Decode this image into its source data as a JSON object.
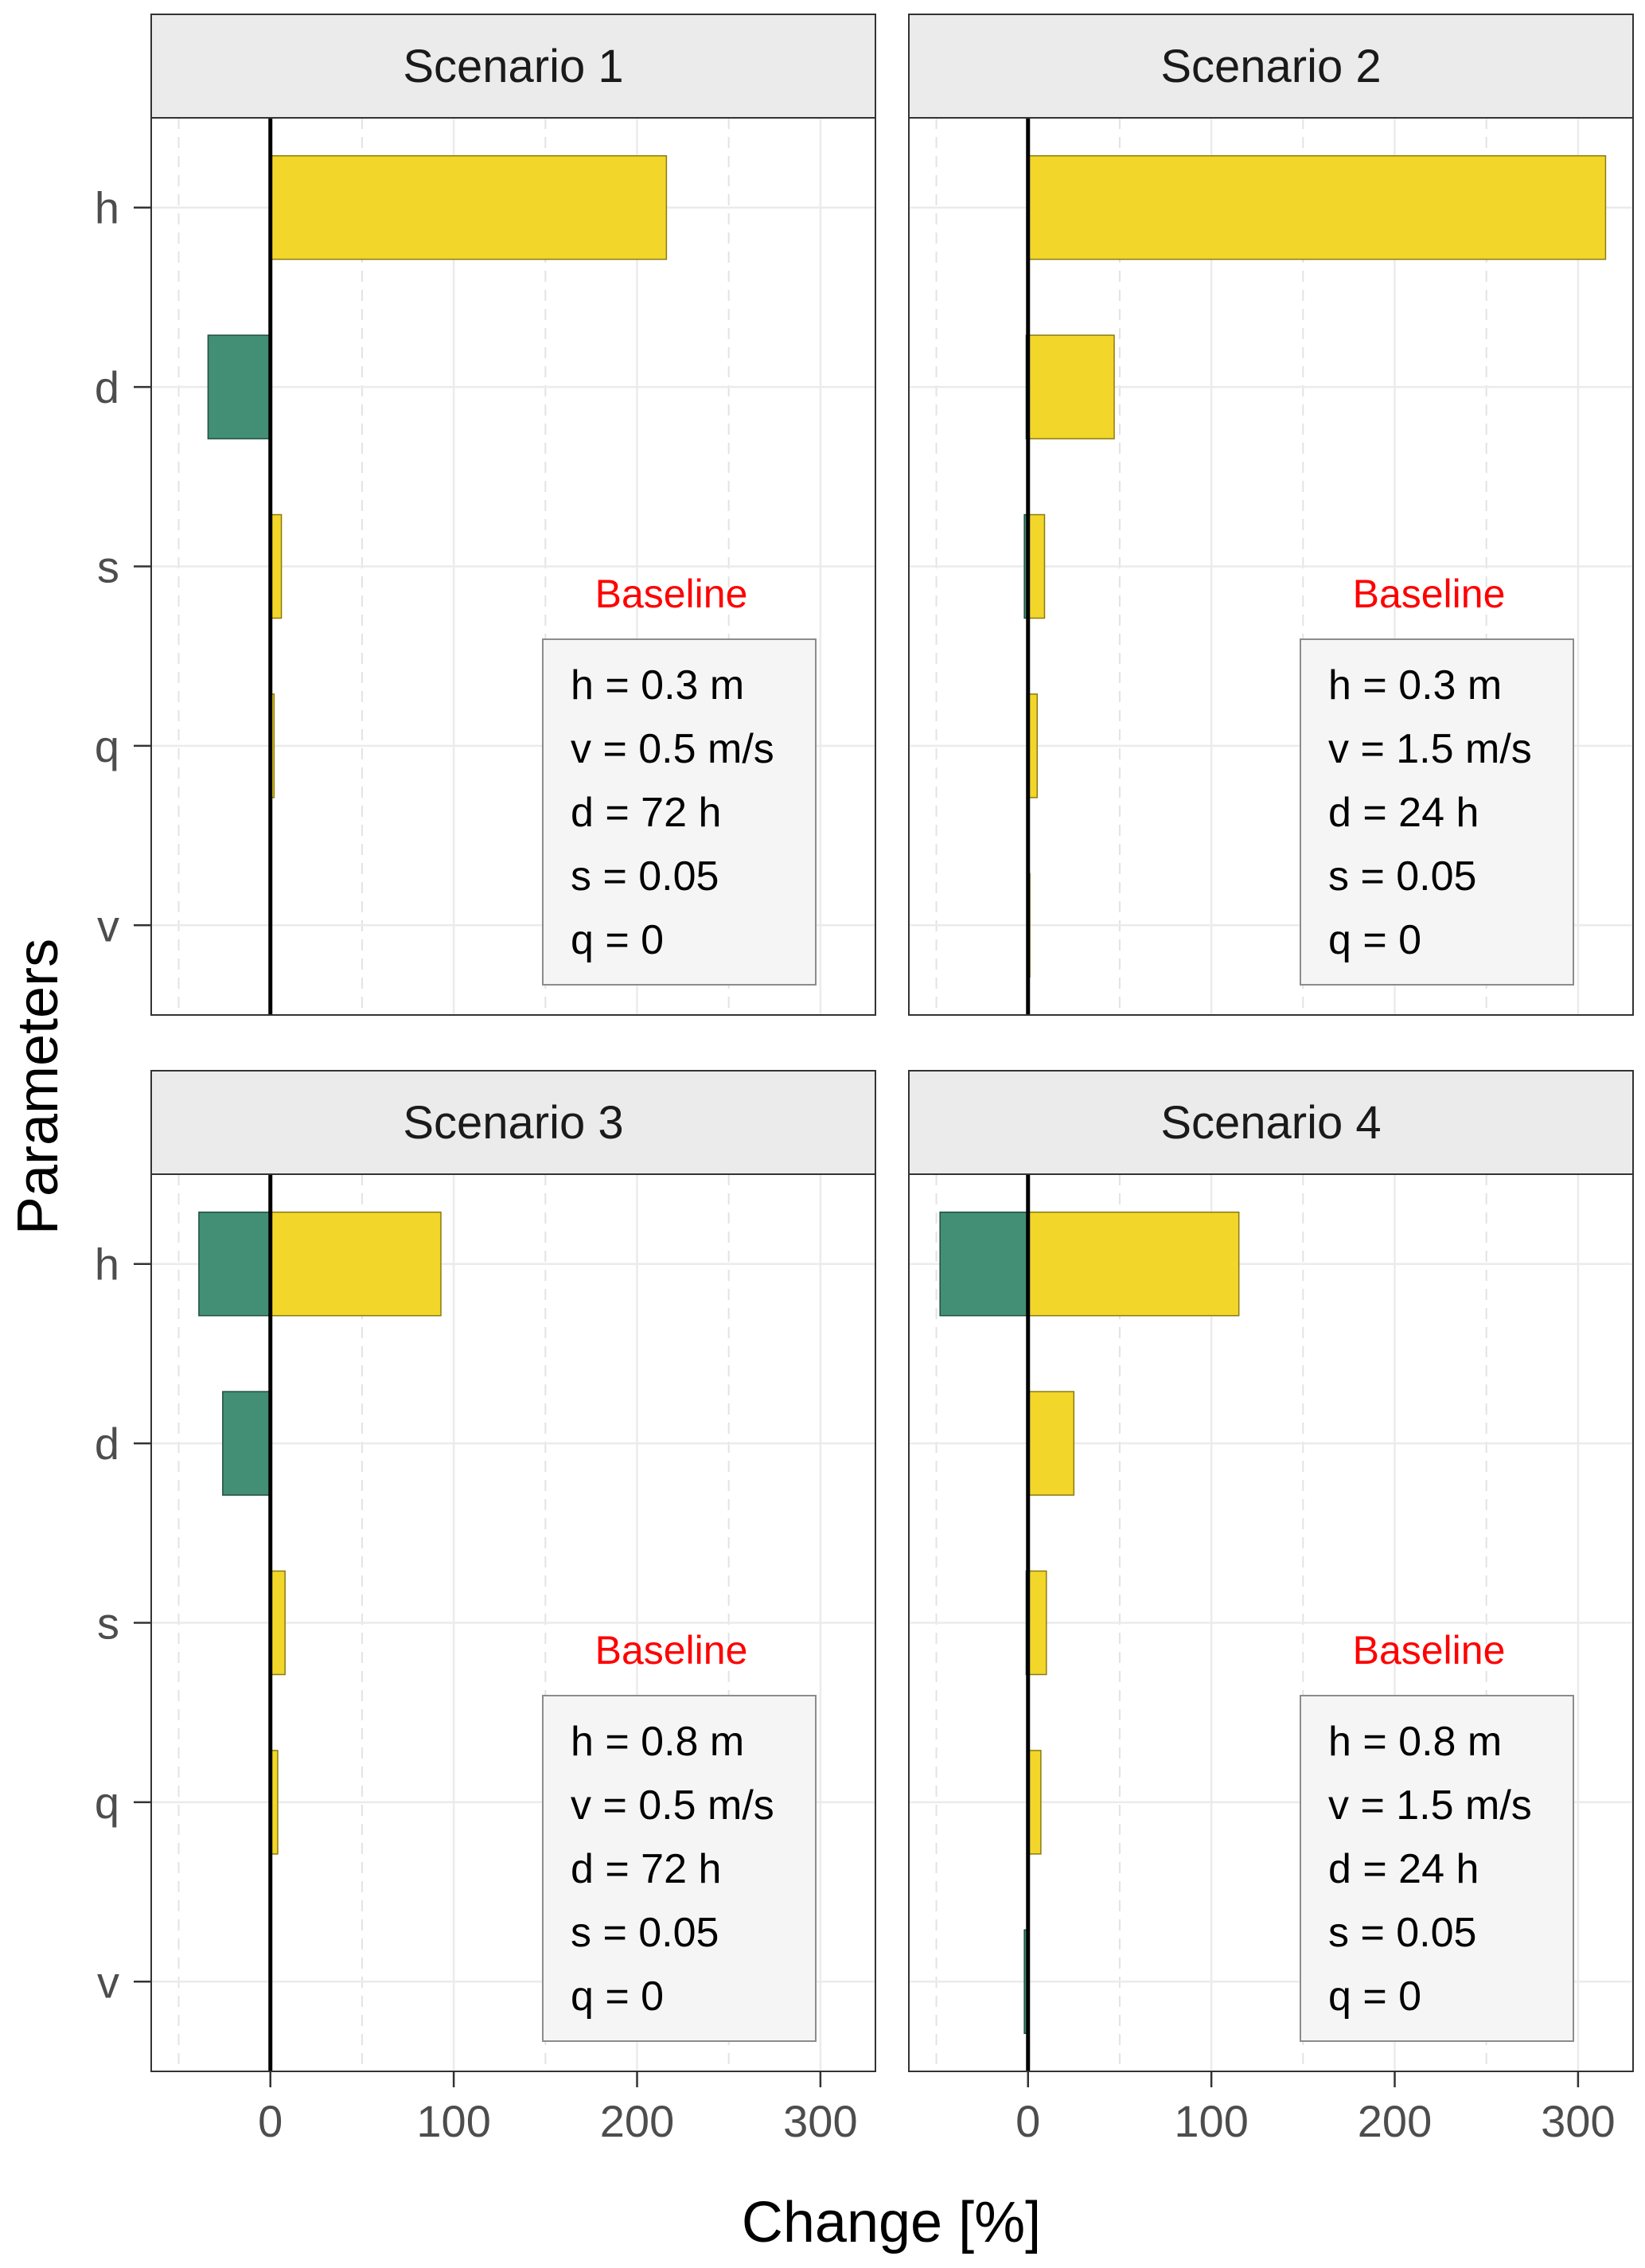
{
  "chart_data": {
    "type": "bar",
    "orientation": "horizontal",
    "xlabel": "Change [%]",
    "ylabel": "Parameters",
    "xlim": [
      -65,
      330
    ],
    "xticks": [
      0,
      100,
      200,
      300
    ],
    "xtick_labels": [
      "0",
      "100",
      "200",
      "300"
    ],
    "minor_gridlines": [
      -50,
      50,
      150,
      250
    ],
    "categories": [
      "h",
      "d",
      "s",
      "q",
      "v"
    ],
    "colors": {
      "increase": "#F2D62A",
      "decrease": "#428F75"
    },
    "series_names": [
      "decrease",
      "increase"
    ],
    "baseline_title": "Baseline",
    "baseline_color": "#FF0000",
    "facets": [
      {
        "title": "Scenario 1",
        "baseline": [
          "h = 0.3 m",
          "v = 0.5 m/s",
          "d = 72 h",
          "s = 0.05",
          "q = 0"
        ],
        "decrease": [
          0,
          -34,
          0,
          0,
          0
        ],
        "increase": [
          216,
          0,
          6,
          2,
          0
        ]
      },
      {
        "title": "Scenario 2",
        "baseline": [
          "h = 0.3 m",
          "v = 1.5 m/s",
          "d = 24 h",
          "s = 0.05",
          "q = 0"
        ],
        "decrease": [
          0,
          -1,
          -2,
          0,
          0
        ],
        "increase": [
          315,
          47,
          9,
          5,
          1
        ]
      },
      {
        "title": "Scenario 3",
        "baseline": [
          "h = 0.8 m",
          "v = 0.5 m/s",
          "d = 72 h",
          "s = 0.05",
          "q = 0"
        ],
        "decrease": [
          -39,
          -26,
          0,
          0,
          0
        ],
        "increase": [
          93,
          0,
          8,
          4,
          0
        ]
      },
      {
        "title": "Scenario 4",
        "baseline": [
          "h = 0.8 m",
          "v = 1.5 m/s",
          "d = 24 h",
          "s = 0.05",
          "q = 0"
        ],
        "decrease": [
          -48,
          0,
          -1,
          0,
          -2
        ],
        "increase": [
          115,
          25,
          10,
          7,
          0
        ]
      }
    ]
  }
}
